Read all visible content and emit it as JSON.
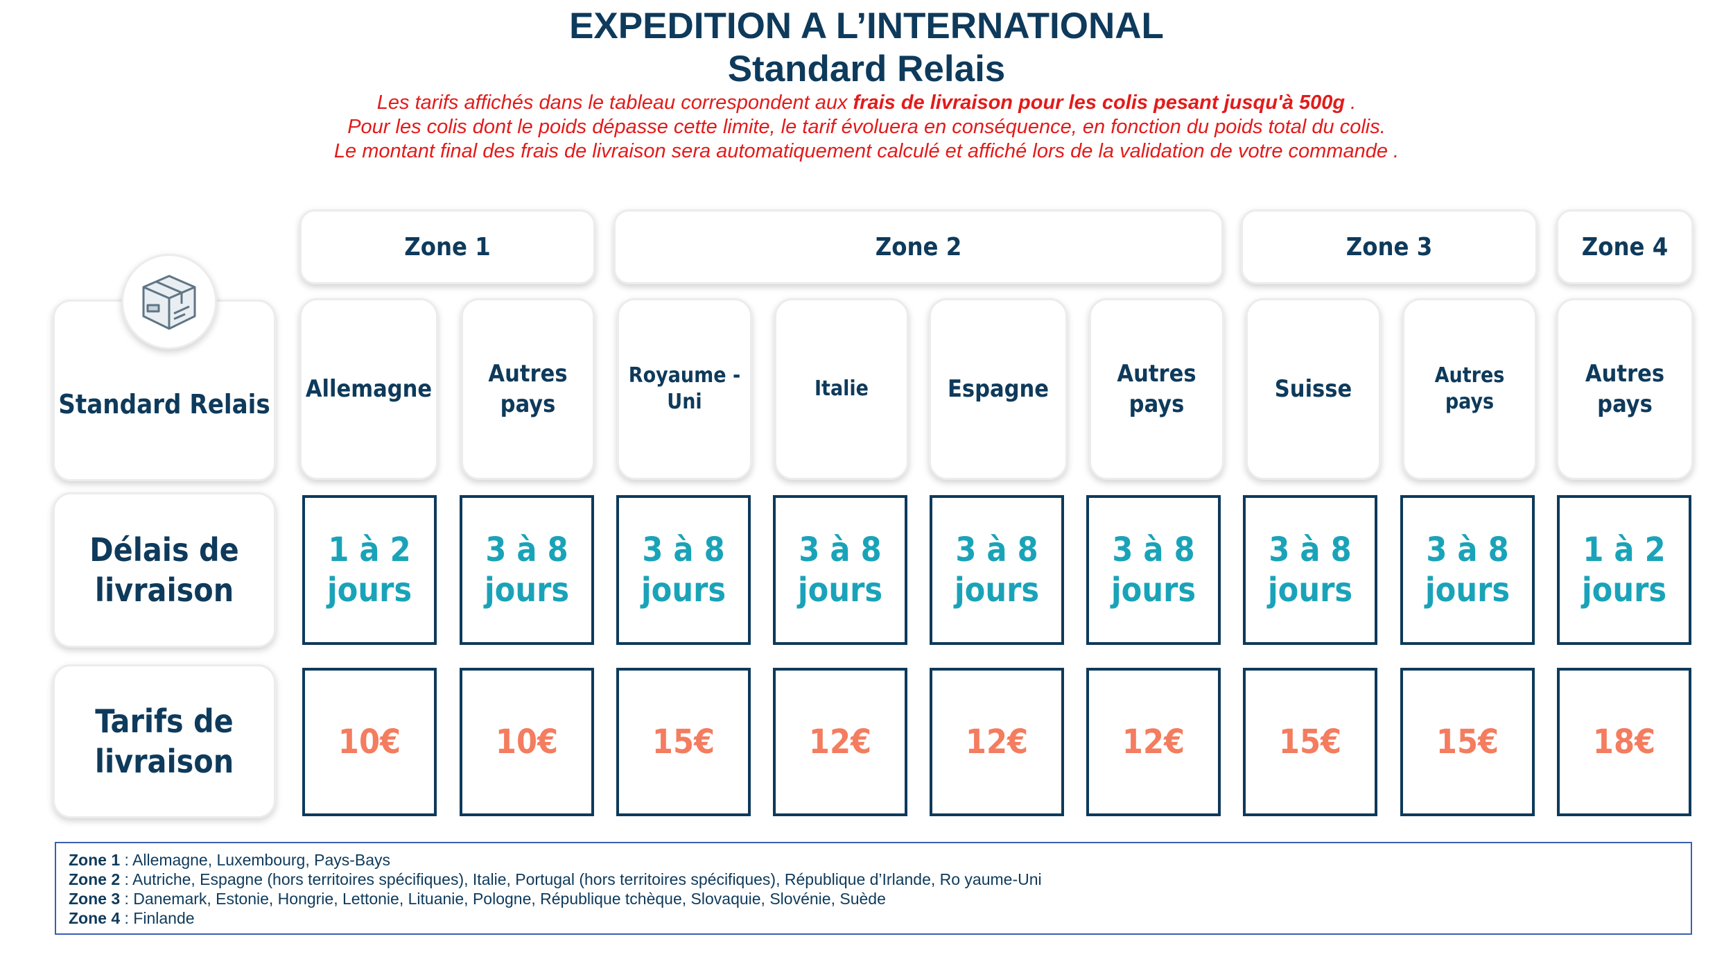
{
  "title": "EXPEDITION A L’INTERNATIONAL",
  "subtitle": "Standard Relais",
  "notice": {
    "line1_prefix": "Les tarifs affichés dans le tableau correspondent aux ",
    "line1_bold": "frais de livraison pour les colis pesant jusqu'à 500g",
    "line1_suffix": " .",
    "line2": "Pour les colis dont le poids dépasse cette limite, le tarif évoluera en conséquence, en fonction du poids total du colis.",
    "line3": "Le montant final des frais de livraison sera automatiquement calculé et affiché lors de la validation de votre commande  ."
  },
  "colors": {
    "navy": "#0e3a5b",
    "teal": "#1aa3b8",
    "salmon": "#f47c5f",
    "red": "#e21b1b"
  },
  "header_icon": "package-box-icon",
  "row_labels": {
    "service": "Standard Relais",
    "delay": "Délais de livraison",
    "price": "Tarifs de livraison"
  },
  "zones": [
    {
      "label": "Zone 1"
    },
    {
      "label": "Zone 2"
    },
    {
      "label": "Zone 3"
    },
    {
      "label": "Zone 4"
    }
  ],
  "columns": [
    {
      "country": "Allemagne",
      "delay": "1 à 2 jours",
      "price": "10€"
    },
    {
      "country": "Autres pays",
      "delay": "3 à 8 jours",
      "price": "10€"
    },
    {
      "country": "Royaume -Uni",
      "delay": "3 à 8 jours",
      "price": "15€"
    },
    {
      "country": "Italie",
      "delay": "3 à 8 jours",
      "price": "12€"
    },
    {
      "country": "Espagne",
      "delay": "3 à 8 jours",
      "price": "12€"
    },
    {
      "country": "Autres pays",
      "delay": "3 à 8 jours",
      "price": "12€"
    },
    {
      "country": "Suisse",
      "delay": "3 à 8 jours",
      "price": "15€"
    },
    {
      "country": "Autres pays",
      "delay": "3 à 8 jours",
      "price": "15€"
    },
    {
      "country": "Autres pays",
      "delay": "1 à 2 jours",
      "price": "18€"
    }
  ],
  "legend": [
    {
      "zone": "Zone 1",
      "countries": " : Allemagne, Luxembourg,  Pays-Bays"
    },
    {
      "zone": "Zone 2",
      "countries": " : Autriche, Espagne (hors territoires spécifiques), Italie, Portugal (hors territoires spécifiques), République d’Irlande, Ro yaume-Uni"
    },
    {
      "zone": "Zone 3",
      "countries": " : Danemark, Estonie, Hongrie, Lettonie, Lituanie, Pologne, République tchèque, Slovaquie, Slovénie, Suède"
    },
    {
      "zone": "Zone 4",
      "countries": " : Finlande"
    }
  ]
}
